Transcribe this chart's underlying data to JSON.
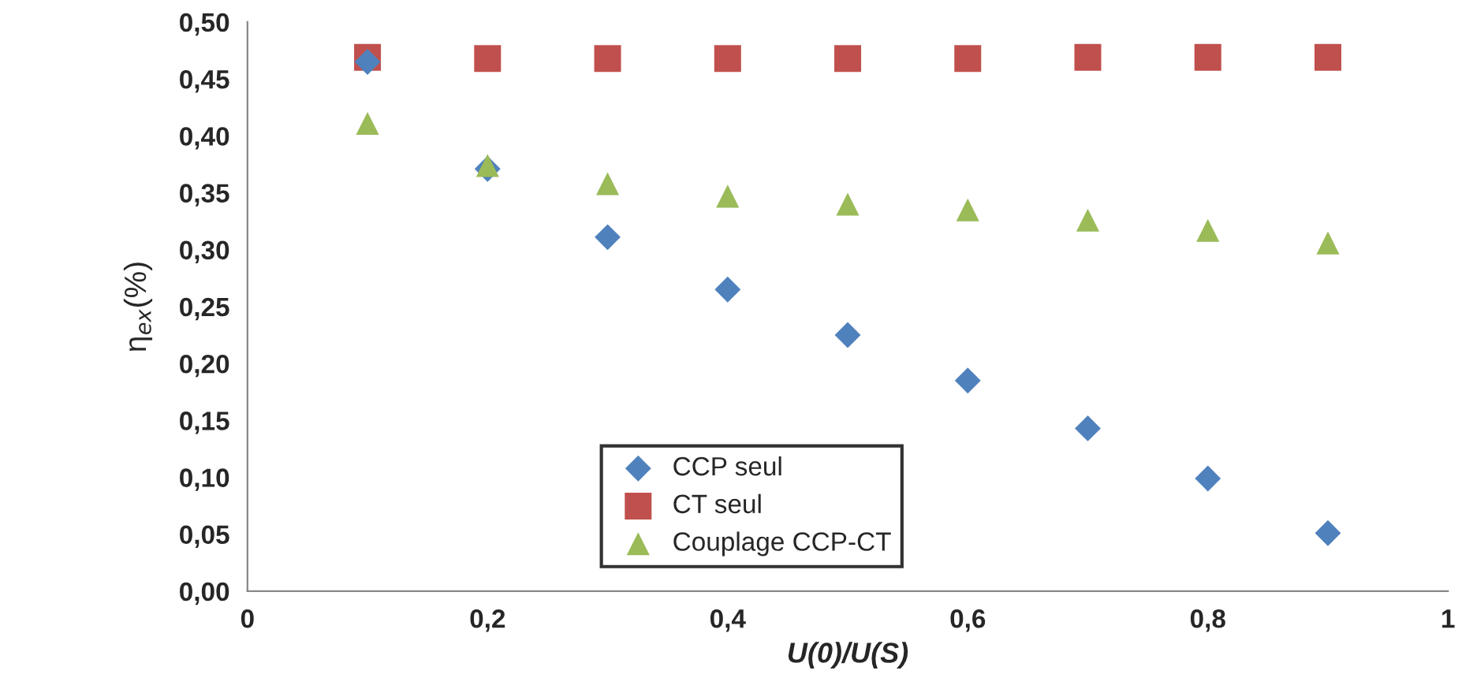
{
  "chart_data": {
    "type": "scatter",
    "xlabel": "U(0)/U(S)",
    "ylabel": "η$_{ex}$(%)",
    "x": [
      0.1,
      0.2,
      0.3,
      0.4,
      0.5,
      0.6,
      0.7,
      0.8,
      0.9
    ],
    "series": [
      {
        "name": "CCP seul",
        "color": "#4f81bd",
        "marker": "diamond",
        "values": [
          0.465,
          0.371,
          0.311,
          0.265,
          0.225,
          0.185,
          0.143,
          0.099,
          0.051
        ]
      },
      {
        "name": "CT seul",
        "color": "#c0504d",
        "marker": "square",
        "values": [
          0.469,
          0.468,
          0.468,
          0.468,
          0.468,
          0.468,
          0.469,
          0.469,
          0.469
        ]
      },
      {
        "name": "Couplage CCP-CT",
        "color": "#9bbb59",
        "marker": "triangle",
        "values": [
          0.411,
          0.374,
          0.358,
          0.347,
          0.34,
          0.335,
          0.326,
          0.317,
          0.306
        ]
      }
    ],
    "xlim": [
      0,
      1
    ],
    "xticks": [
      0,
      {
        "value": 0.2,
        "label": "0,2"
      },
      {
        "value": 0.4,
        "label": "0,4"
      },
      {
        "value": 0.6,
        "label": "0,6"
      },
      {
        "value": 0.8,
        "label": "0,8"
      },
      1
    ],
    "ylim": [
      0,
      0.5
    ],
    "yticks": [
      {
        "value": 0,
        "label": "0,00"
      },
      {
        "value": 0.05,
        "label": "0,05"
      },
      {
        "value": 0.1,
        "label": "0,10"
      },
      {
        "value": 0.15,
        "label": "0,15"
      },
      {
        "value": 0.2,
        "label": "0,20"
      },
      {
        "value": 0.25,
        "label": "0,25"
      },
      {
        "value": 0.3,
        "label": "0,30"
      },
      {
        "value": 0.35,
        "label": "0,35"
      },
      {
        "value": 0.4,
        "label": "0,40"
      },
      {
        "value": 0.45,
        "label": "0,45"
      },
      {
        "value": 0.5,
        "label": "0,50"
      }
    ],
    "grid": false,
    "legend": "bottom"
  }
}
